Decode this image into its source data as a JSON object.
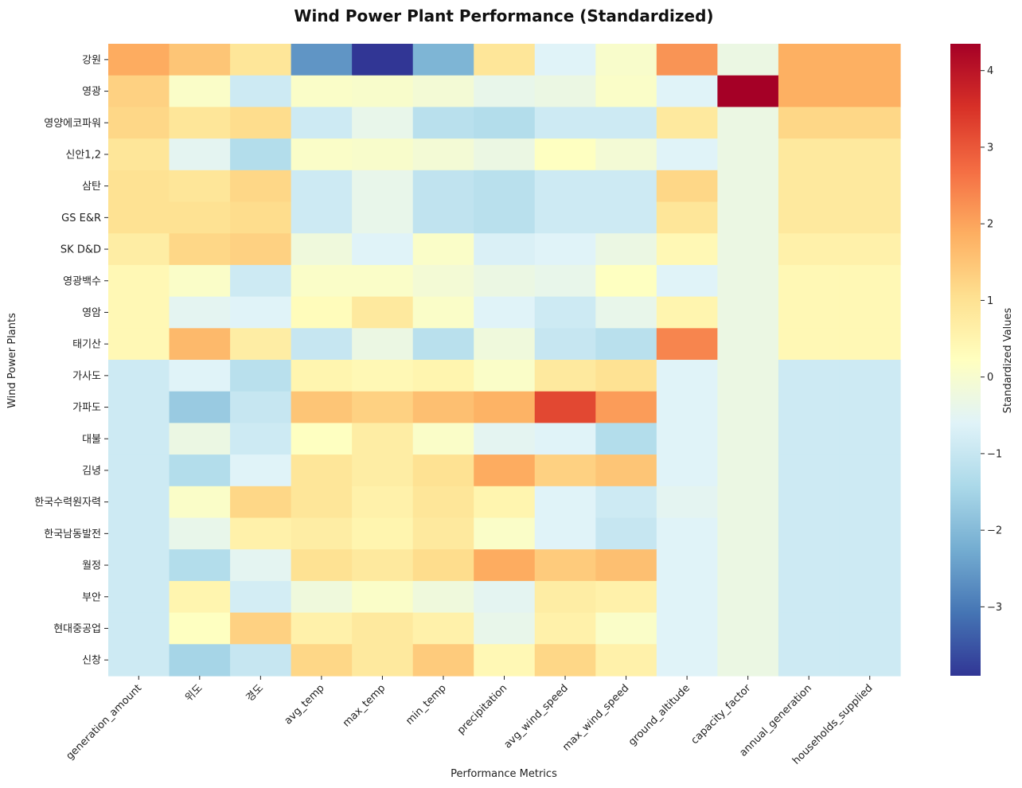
{
  "chart_data": {
    "type": "heatmap",
    "title": "Wind Power Plant Performance (Standardized)",
    "xlabel": "Performance Metrics",
    "ylabel": "Wind Power Plants",
    "colorbar_label": "Standardized Values",
    "colormap": "RdYlBu_r",
    "vmin": -3.9,
    "vmax": 4.35,
    "colorbar_ticks": [
      -3,
      -2,
      -1,
      0,
      1,
      2,
      3,
      4
    ],
    "columns": [
      "generation_amount",
      "위도",
      "경도",
      "avg_temp",
      "max_temp",
      "min_temp",
      "precipitation",
      "avg_wind_speed",
      "max_wind_speed",
      "ground_altitude",
      "capacity_factor",
      "annual_generation",
      "households_supplied"
    ],
    "rows": [
      "강원",
      "영광",
      "영양에코파워",
      "신안1,2",
      "삼탄",
      "GS E&R",
      "SK D&D",
      "영광백수",
      "영암",
      "태기산",
      "가사도",
      "가파도",
      "대불",
      "김녕",
      "한국수력원자력",
      "한국남동발전",
      "월정",
      "부안",
      "현대중공업",
      "신창"
    ],
    "values": [
      [
        1.9,
        1.5,
        0.9,
        -2.6,
        -3.9,
        -2.1,
        0.9,
        -0.6,
        0.05,
        2.2,
        -0.3,
        1.85,
        1.85
      ],
      [
        1.3,
        0.1,
        -0.9,
        0.1,
        0.05,
        -0.1,
        -0.4,
        -0.3,
        0.1,
        -0.6,
        4.35,
        1.85,
        1.85
      ],
      [
        1.2,
        0.9,
        1.1,
        -0.9,
        -0.4,
        -1.2,
        -1.3,
        -0.9,
        -0.9,
        0.8,
        -0.3,
        1.2,
        1.2
      ],
      [
        0.9,
        -0.5,
        -1.3,
        0.1,
        0.05,
        -0.1,
        -0.3,
        0.2,
        -0.1,
        -0.6,
        -0.3,
        0.8,
        0.8
      ],
      [
        1.0,
        0.9,
        1.2,
        -0.9,
        -0.4,
        -1.1,
        -1.2,
        -0.9,
        -0.9,
        1.2,
        -0.3,
        0.8,
        0.8
      ],
      [
        1.0,
        1.0,
        1.1,
        -0.9,
        -0.4,
        -1.1,
        -1.2,
        -0.9,
        -0.9,
        0.9,
        -0.3,
        0.8,
        0.8
      ],
      [
        0.7,
        1.2,
        1.3,
        -0.2,
        -0.6,
        0.1,
        -0.7,
        -0.6,
        -0.3,
        0.4,
        -0.3,
        0.6,
        0.6
      ],
      [
        0.4,
        0.1,
        -0.9,
        0.1,
        0.1,
        -0.1,
        -0.3,
        -0.4,
        0.2,
        -0.6,
        -0.3,
        0.4,
        0.4
      ],
      [
        0.4,
        -0.5,
        -0.6,
        0.3,
        0.8,
        0.1,
        -0.6,
        -0.9,
        -0.4,
        0.5,
        -0.3,
        0.4,
        0.4
      ],
      [
        0.4,
        1.7,
        0.7,
        -1.0,
        -0.3,
        -1.2,
        -0.2,
        -1.0,
        -1.2,
        2.4,
        -0.3,
        0.4,
        0.4
      ],
      [
        -0.9,
        -0.6,
        -1.2,
        0.5,
        0.4,
        0.5,
        0.1,
        0.8,
        1.0,
        -0.6,
        -0.3,
        -0.9,
        -0.9
      ],
      [
        -0.9,
        -1.7,
        -1.0,
        1.5,
        1.3,
        1.6,
        1.8,
        3.2,
        2.1,
        -0.6,
        -0.3,
        -0.9,
        -0.9
      ],
      [
        -0.9,
        -0.3,
        -0.9,
        0.2,
        0.7,
        0.1,
        -0.5,
        -0.6,
        -1.3,
        -0.6,
        -0.3,
        -0.9,
        -0.9
      ],
      [
        -0.9,
        -1.3,
        -0.6,
        0.9,
        0.7,
        1.0,
        1.9,
        1.3,
        1.5,
        -0.6,
        -0.3,
        -0.9,
        -0.9
      ],
      [
        -0.9,
        0.1,
        1.2,
        0.9,
        0.6,
        0.9,
        0.5,
        -0.6,
        -0.9,
        -0.5,
        -0.3,
        -0.9,
        -0.9
      ],
      [
        -0.9,
        -0.4,
        0.6,
        0.7,
        0.5,
        0.8,
        0.1,
        -0.6,
        -1.0,
        -0.6,
        -0.3,
        -0.9,
        -0.9
      ],
      [
        -0.9,
        -1.3,
        -0.5,
        1.0,
        0.8,
        1.1,
        1.9,
        1.4,
        1.6,
        -0.6,
        -0.3,
        -0.9,
        -0.9
      ],
      [
        -0.9,
        0.5,
        -0.8,
        -0.2,
        0.1,
        -0.2,
        -0.5,
        0.7,
        0.6,
        -0.6,
        -0.3,
        -0.9,
        -0.9
      ],
      [
        -0.9,
        0.2,
        1.3,
        0.6,
        0.8,
        0.6,
        -0.4,
        0.6,
        0.1,
        -0.6,
        -0.3,
        -0.9,
        -0.9
      ],
      [
        -0.9,
        -1.5,
        -1.0,
        1.2,
        0.8,
        1.4,
        0.4,
        1.2,
        0.6,
        -0.6,
        -0.3,
        -0.9,
        -0.9
      ]
    ]
  }
}
